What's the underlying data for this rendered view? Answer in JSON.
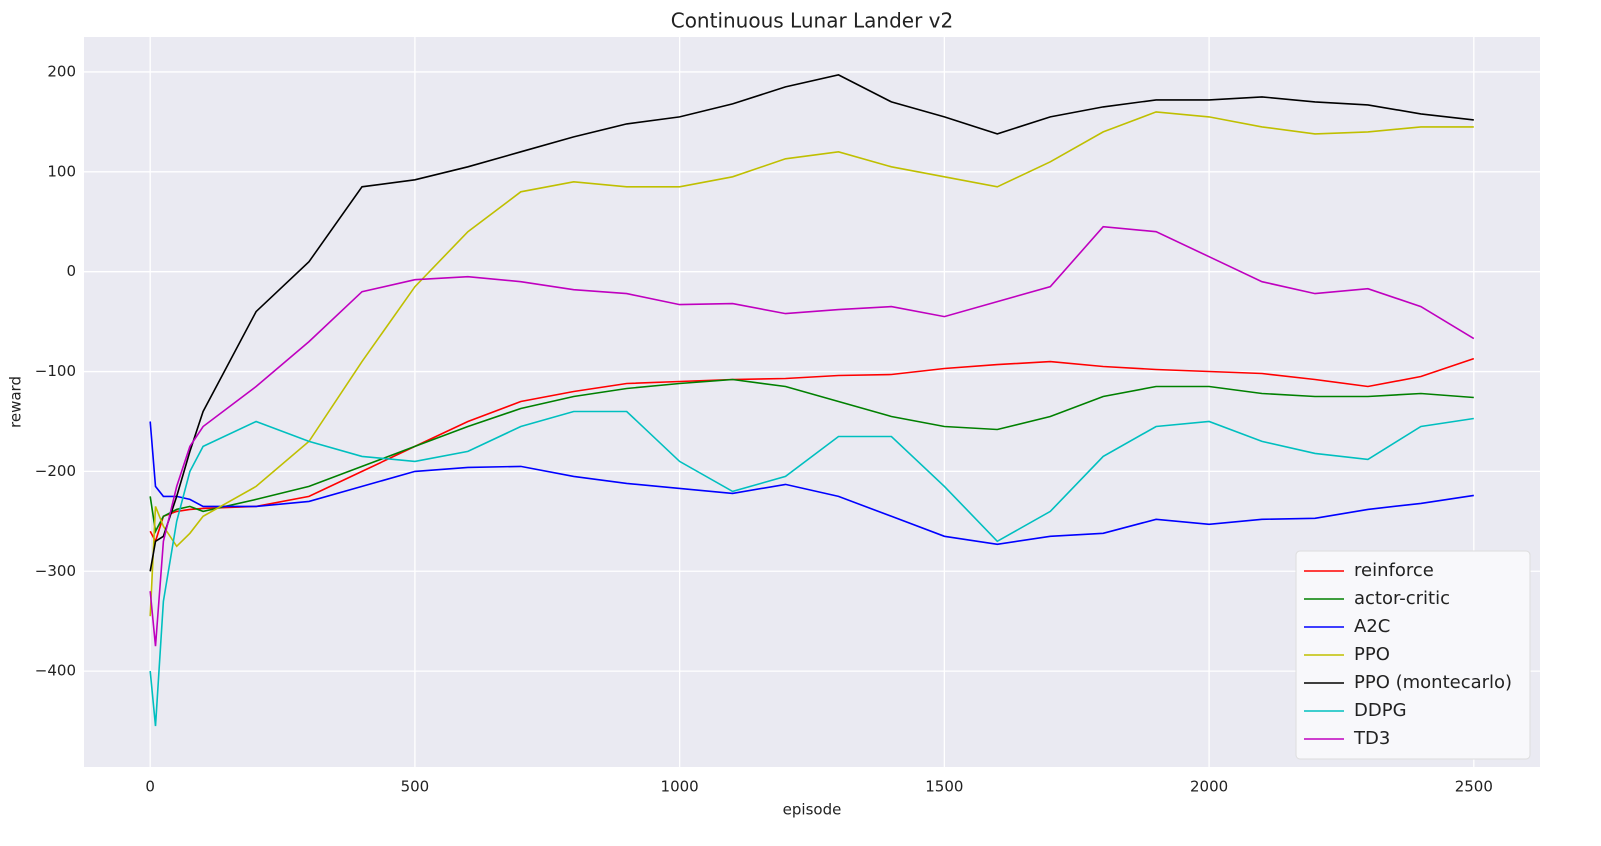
{
  "chart_data": {
    "type": "line",
    "title": "Continuous Lunar Lander v2",
    "x_label": "episode",
    "y_label": "reward",
    "x": [
      0,
      10,
      25,
      50,
      75,
      100,
      200,
      300,
      400,
      500,
      600,
      700,
      800,
      900,
      1000,
      1100,
      1200,
      1300,
      1400,
      1500,
      1600,
      1700,
      1800,
      1900,
      2000,
      2100,
      2200,
      2300,
      2400,
      2500
    ],
    "series": [
      {
        "name": "reinforce",
        "color": "#ff0000",
        "values": [
          -260,
          -270,
          -245,
          -240,
          -238,
          -237,
          -235,
          -225,
          -200,
          -175,
          -150,
          -130,
          -120,
          -112,
          -110,
          -108,
          -107,
          -104,
          -103,
          -97,
          -93,
          -90,
          -95,
          -98,
          -100,
          -102,
          -108,
          -115,
          -105,
          -87
        ]
      },
      {
        "name": "actor-critic",
        "color": "#008000",
        "values": [
          -225,
          -260,
          -245,
          -238,
          -235,
          -240,
          -228,
          -215,
          -195,
          -175,
          -155,
          -137,
          -125,
          -117,
          -112,
          -108,
          -115,
          -130,
          -145,
          -155,
          -158,
          -145,
          -125,
          -115,
          -115,
          -122,
          -125,
          -125,
          -122,
          -126
        ]
      },
      {
        "name": "A2C",
        "color": "#0000ff",
        "values": [
          -150,
          -215,
          -225,
          -225,
          -228,
          -235,
          -235,
          -230,
          -215,
          -200,
          -196,
          -195,
          -205,
          -212,
          -217,
          -222,
          -213,
          -225,
          -245,
          -265,
          -273,
          -265,
          -262,
          -248,
          -253,
          -248,
          -247,
          -238,
          -232,
          -224
        ]
      },
      {
        "name": "PPO",
        "color": "#bfbf00",
        "values": [
          -345,
          -235,
          -255,
          -275,
          -262,
          -245,
          -215,
          -170,
          -90,
          -15,
          40,
          80,
          90,
          85,
          85,
          95,
          113,
          120,
          105,
          95,
          85,
          110,
          140,
          160,
          155,
          145,
          138,
          140,
          145,
          145
        ]
      },
      {
        "name": "PPO (montecarlo)",
        "color": "#000000",
        "values": [
          -300,
          -270,
          -265,
          -225,
          -180,
          -140,
          -40,
          10,
          85,
          92,
          105,
          120,
          135,
          148,
          155,
          168,
          185,
          197,
          170,
          155,
          138,
          155,
          165,
          172,
          172,
          175,
          170,
          167,
          158,
          152
        ]
      },
      {
        "name": "DDPG",
        "color": "#00bfbf",
        "values": [
          -400,
          -455,
          -330,
          -250,
          -200,
          -175,
          -150,
          -170,
          -185,
          -190,
          -180,
          -155,
          -140,
          -140,
          -190,
          -220,
          -205,
          -165,
          -165,
          -215,
          -270,
          -240,
          -185,
          -155,
          -150,
          -170,
          -182,
          -188,
          -155,
          -147
        ]
      },
      {
        "name": "TD3",
        "color": "#bf00bf",
        "values": [
          -320,
          -375,
          -270,
          -215,
          -175,
          -155,
          -115,
          -70,
          -20,
          -8,
          -5,
          -10,
          -18,
          -22,
          -33,
          -32,
          -42,
          -38,
          -35,
          -45,
          -30,
          -15,
          45,
          40,
          15,
          -10,
          -22,
          -17,
          -35,
          -67
        ]
      }
    ],
    "xlim": [
      -125,
      2625
    ],
    "ylim": [
      -496,
      235
    ],
    "xticks": [
      0,
      500,
      1000,
      1500,
      2000,
      2500
    ],
    "yticks": [
      {
        "value": -400,
        "label": "−400"
      },
      {
        "value": -300,
        "label": "−300"
      },
      {
        "value": -200,
        "label": "−200"
      },
      {
        "value": -100,
        "label": "−100"
      },
      0,
      100,
      200
    ],
    "grid": true,
    "legend": "lower right"
  }
}
